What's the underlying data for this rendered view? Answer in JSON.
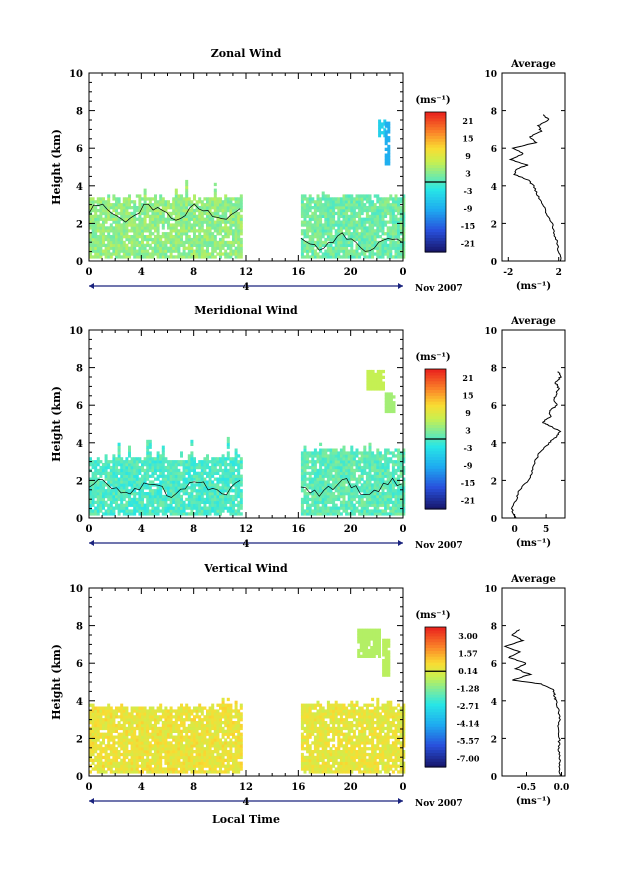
{
  "chart_data": [
    {
      "type": "heatmap",
      "title": "Zonal Wind",
      "ylabel": "Height (km)",
      "xlabel": "",
      "ylim": [
        0,
        10
      ],
      "xlim": [
        0,
        24
      ],
      "yticks": [
        "0",
        "2",
        "4",
        "6",
        "8",
        "10"
      ],
      "xticks": [
        "0",
        "4",
        "8",
        "12",
        "16",
        "20",
        "0"
      ],
      "date_marker": "4",
      "date_label": "Nov 2007",
      "colorbar": {
        "unit": "(ms⁻¹)",
        "ticks": [
          "21",
          "15",
          "9",
          "3",
          "-3",
          "-9",
          "-15",
          "-21"
        ],
        "range": [
          -24,
          24
        ]
      },
      "data_segments": [
        {
          "x": [
            0,
            11.7
          ],
          "top_km": 3.2,
          "max_top_km": 4.3,
          "value": 4
        },
        {
          "x": [
            16.2,
            24
          ],
          "top_km": 3.3,
          "max_top_km": 3.6,
          "value": 2
        }
      ],
      "extra_patches": [
        {
          "x": [
            22.1,
            22.5
          ],
          "y": [
            6.6,
            7.5
          ],
          "value": -5
        },
        {
          "x": [
            22.6,
            22.9
          ],
          "y": [
            5.1,
            7.3
          ],
          "value": -9
        }
      ],
      "average_profile": {
        "title": "Average",
        "xlabel": "(ms⁻¹)",
        "xticks": [
          "-2",
          "2"
        ],
        "xlim": [
          -2.5,
          2.5
        ],
        "height_km": [
          0,
          0.5,
          1,
          1.5,
          2,
          2.5,
          3,
          3.5,
          4,
          4.3,
          4.6,
          4.9,
          5.1,
          5.4,
          5.7,
          6,
          6.3,
          6.6,
          6.9,
          7.2,
          7.5,
          7.8
        ],
        "values": [
          2.2,
          2.0,
          1.9,
          1.6,
          1.5,
          1.0,
          0.8,
          0.3,
          0.0,
          -0.4,
          -1.5,
          -1.3,
          -0.5,
          -1.8,
          -0.8,
          -1.6,
          0.2,
          -0.3,
          0.6,
          0.4,
          1.2,
          0.8
        ]
      }
    },
    {
      "type": "heatmap",
      "title": "Meridional Wind",
      "ylabel": "Height (km)",
      "xlabel": "",
      "ylim": [
        0,
        10
      ],
      "xlim": [
        0,
        24
      ],
      "yticks": [
        "0",
        "2",
        "4",
        "6",
        "8",
        "10"
      ],
      "xticks": [
        "0",
        "4",
        "8",
        "12",
        "16",
        "20",
        "0"
      ],
      "date_marker": "4",
      "date_label": "Nov 2007",
      "colorbar": {
        "unit": "(ms⁻¹)",
        "ticks": [
          "21",
          "15",
          "9",
          "3",
          "-3",
          "-9",
          "-15",
          "-21"
        ],
        "range": [
          -24,
          24
        ]
      },
      "data_segments": [
        {
          "x": [
            0,
            11.7
          ],
          "top_km": 3.0,
          "max_top_km": 4.2,
          "value": 0
        },
        {
          "x": [
            16.2,
            24
          ],
          "top_km": 3.4,
          "max_top_km": 4.0,
          "value": 1
        }
      ],
      "extra_patches": [
        {
          "x": [
            21.2,
            22.4
          ],
          "y": [
            6.8,
            7.8
          ],
          "value": 7
        },
        {
          "x": [
            22.6,
            23.3
          ],
          "y": [
            5.6,
            6.6
          ],
          "value": 5
        }
      ],
      "average_profile": {
        "title": "Average",
        "xlabel": "(ms⁻¹)",
        "xticks": [
          "0",
          "5"
        ],
        "xlim": [
          -2,
          8
        ],
        "height_km": [
          0,
          0.5,
          1,
          1.5,
          2,
          2.5,
          3,
          3.5,
          4,
          4.3,
          4.6,
          4.9,
          5.1,
          5.4,
          5.7,
          6,
          6.3,
          6.6,
          6.9,
          7.2,
          7.5,
          7.8
        ],
        "values": [
          0.2,
          -0.5,
          0.3,
          0.8,
          2.2,
          2.8,
          3.2,
          4.0,
          5.5,
          6.5,
          7.2,
          5.6,
          4.4,
          5.8,
          5.5,
          6.8,
          6.2,
          6.6,
          7.0,
          6.5,
          7.3,
          6.9
        ]
      }
    },
    {
      "type": "heatmap",
      "title": "Vertical Wind",
      "ylabel": "Height (km)",
      "xlabel": "Local Time",
      "ylim": [
        0,
        10
      ],
      "xlim": [
        0,
        24
      ],
      "yticks": [
        "0",
        "2",
        "4",
        "6",
        "8",
        "10"
      ],
      "xticks": [
        "0",
        "4",
        "8",
        "12",
        "16",
        "20",
        "0"
      ],
      "date_marker": "4",
      "date_label": "Nov 2007",
      "colorbar": {
        "unit": "(ms⁻¹)",
        "ticks": [
          "3.00",
          "1.57",
          "0.14",
          "-1.28",
          "-2.71",
          "-4.14",
          "-5.57",
          "-7.00"
        ],
        "range": [
          -8,
          3.7
        ]
      },
      "data_segments": [
        {
          "x": [
            0,
            11.7
          ],
          "top_km": 3.5,
          "max_top_km": 4.2,
          "value": 0.4
        },
        {
          "x": [
            16.2,
            24
          ],
          "top_km": 3.6,
          "max_top_km": 4.1,
          "value": 0.3
        }
      ],
      "extra_patches": [
        {
          "x": [
            20.5,
            22.2
          ],
          "y": [
            6.3,
            7.8
          ],
          "value": -0.7
        },
        {
          "x": [
            22.4,
            22.8
          ],
          "y": [
            5.3,
            7.3
          ],
          "value": -0.6
        }
      ],
      "average_profile": {
        "title": "Average",
        "xlabel": "(ms⁻¹)",
        "xticks": [
          "-0.5",
          "0.0"
        ],
        "xlim": [
          -0.85,
          0.05
        ],
        "height_km": [
          0,
          0.5,
          1,
          1.5,
          2,
          2.5,
          3,
          3.5,
          4,
          4.3,
          4.6,
          4.9,
          5.1,
          5.4,
          5.7,
          6,
          6.3,
          6.6,
          6.9,
          7.2,
          7.5,
          7.8
        ],
        "values": [
          -0.02,
          -0.03,
          -0.02,
          -0.04,
          -0.03,
          -0.05,
          -0.02,
          -0.04,
          -0.08,
          -0.1,
          -0.12,
          -0.3,
          -0.7,
          -0.45,
          -0.65,
          -0.5,
          -0.75,
          -0.6,
          -0.8,
          -0.55,
          -0.7,
          -0.6
        ]
      }
    }
  ]
}
